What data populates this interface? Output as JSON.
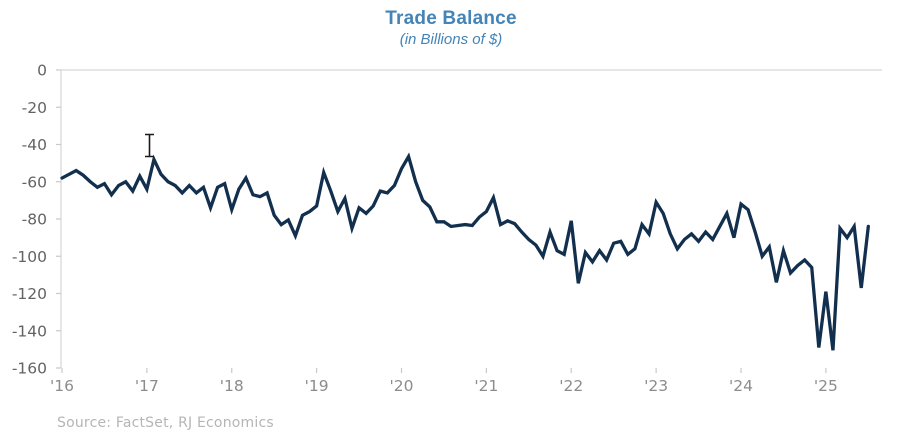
{
  "source_note": "Source: FactSet, RJ Economics",
  "colors": {
    "title_blue": "#4484B6",
    "line_navy": "#122F4E",
    "axis_line": "#D6D6D6",
    "tick_mark": "#C9C9C9",
    "y_label_gray": "#636363",
    "x_label_gray": "#8C8C8C",
    "source_gray": "#B5B5B5",
    "cursor_black": "#1A1A1A"
  },
  "chart_data": {
    "type": "line",
    "title": "Trade Balance",
    "subtitle": "(in Billions of $)",
    "unit": "billions of $",
    "frequency": "monthly",
    "x_start": "2016-01",
    "x_end": "2025-07",
    "xlabel": "",
    "ylabel": "",
    "ylim": [
      -160,
      0
    ],
    "grid": "zero line only",
    "legend": "none",
    "x_tick_labels": [
      "'16",
      "'17",
      "'18",
      "'19",
      "'20",
      "'21",
      "'22",
      "'23",
      "'24",
      "'25"
    ],
    "y_tick_labels": [
      "0",
      "-20",
      "-40",
      "-60",
      "-80",
      "-100",
      "-120",
      "-140",
      "-160"
    ],
    "series": [
      {
        "name": "Trade Balance",
        "values": [
          -58,
          -56,
          -54,
          -56.5,
          -60,
          -63,
          -61,
          -67,
          -62,
          -60,
          -65,
          -57,
          -64,
          -48,
          -56,
          -60,
          -62,
          -66,
          -62,
          -66,
          -63,
          -74,
          -63,
          -61,
          -75,
          -64,
          -58,
          -67,
          -68,
          -66,
          -78,
          -83,
          -80.5,
          -89,
          -78,
          -76,
          -73,
          -55,
          -65,
          -76,
          -69,
          -85,
          -74,
          -77,
          -73,
          -65,
          -66,
          -62,
          -53,
          -46.5,
          -60,
          -70,
          -73.5,
          -81.5,
          -81.5,
          -84,
          -83.5,
          -83,
          -83.5,
          -79,
          -76,
          -68.5,
          -83,
          -81,
          -82.5,
          -87,
          -91,
          -94,
          -100,
          -87,
          -97,
          -99,
          -81,
          -114.5,
          -98,
          -103,
          -97,
          -102,
          -93,
          -92,
          -99,
          -96,
          -83,
          -88,
          -71,
          -77,
          -88,
          -96,
          -91,
          -88,
          -92,
          -87,
          -91,
          -84,
          -77,
          -90,
          -72,
          -75,
          -87,
          -100,
          -95,
          -114,
          -97,
          -109,
          -105,
          -102,
          -106,
          -149,
          -119,
          -150.5,
          -85,
          -90,
          -84,
          -117,
          -84
        ]
      }
    ]
  }
}
